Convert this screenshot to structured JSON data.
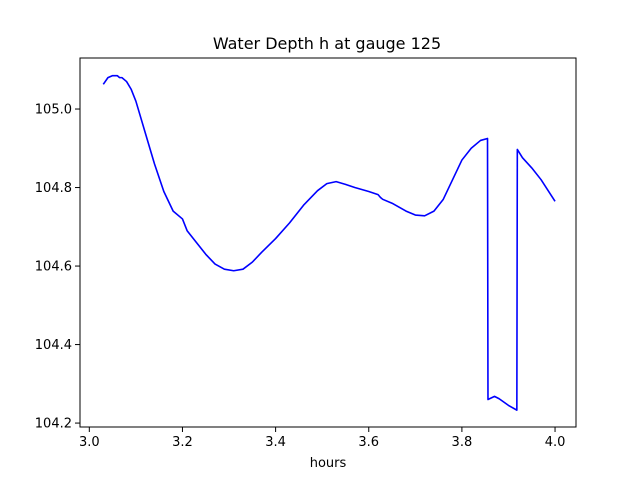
{
  "chart_data": {
    "type": "line",
    "title": "Water Depth h at gauge 125",
    "xlabel": "hours",
    "ylabel": "",
    "xlim": [
      2.98,
      4.045
    ],
    "ylim": [
      104.19,
      105.13
    ],
    "grid": false,
    "xticks": [
      3.0,
      3.2,
      3.4,
      3.6,
      3.8,
      4.0
    ],
    "xtick_labels": [
      "3.0",
      "3.2",
      "3.4",
      "3.6",
      "3.8",
      "4.0"
    ],
    "yticks": [
      104.2,
      104.4,
      104.6,
      104.8,
      105.0
    ],
    "ytick_labels": [
      "104.2",
      "104.4",
      "104.6",
      "104.8",
      "105.0"
    ],
    "series": [
      {
        "color": "#0000ff",
        "x": [
          3.03,
          3.04,
          3.05,
          3.06,
          3.065,
          3.07,
          3.08,
          3.09,
          3.1,
          3.12,
          3.14,
          3.16,
          3.18,
          3.2,
          3.21,
          3.23,
          3.25,
          3.27,
          3.29,
          3.31,
          3.33,
          3.35,
          3.37,
          3.4,
          3.43,
          3.46,
          3.49,
          3.51,
          3.53,
          3.55,
          3.57,
          3.6,
          3.62,
          3.625,
          3.63,
          3.65,
          3.68,
          3.7,
          3.72,
          3.74,
          3.76,
          3.78,
          3.8,
          3.82,
          3.84,
          3.855,
          3.856,
          3.87,
          3.88,
          3.9,
          3.918,
          3.919,
          3.93,
          3.95,
          3.97,
          4.0
        ],
        "y": [
          105.063,
          105.08,
          105.085,
          105.085,
          105.08,
          105.08,
          105.07,
          105.05,
          105.02,
          104.94,
          104.86,
          104.79,
          104.74,
          104.72,
          104.69,
          104.66,
          104.63,
          104.605,
          104.592,
          104.588,
          104.592,
          104.61,
          104.635,
          104.67,
          104.71,
          104.755,
          104.792,
          104.81,
          104.815,
          104.808,
          104.8,
          104.79,
          104.782,
          104.775,
          104.77,
          104.76,
          104.74,
          104.73,
          104.728,
          104.74,
          104.77,
          104.82,
          104.87,
          104.9,
          104.92,
          104.925,
          104.26,
          104.268,
          104.262,
          104.245,
          104.233,
          104.897,
          104.876,
          104.85,
          104.82,
          104.765
        ]
      }
    ]
  }
}
